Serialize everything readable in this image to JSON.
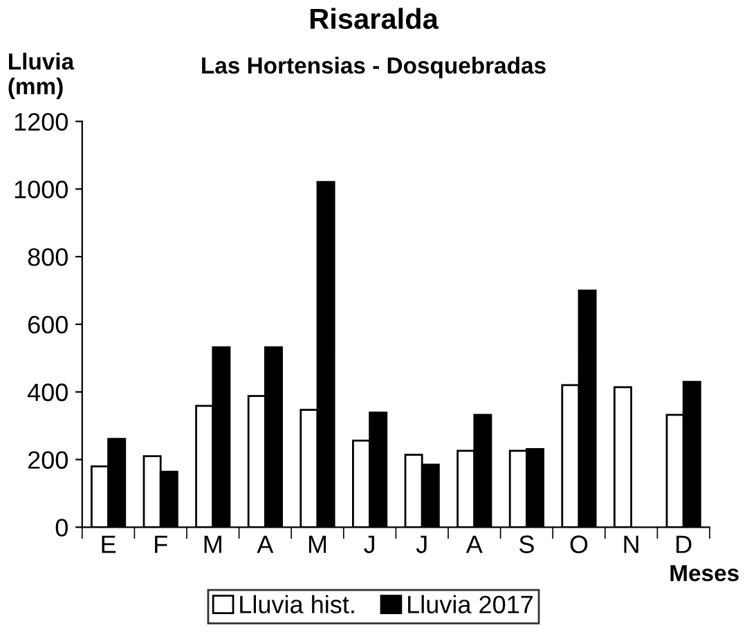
{
  "chart_data": {
    "type": "bar",
    "title": "Risaralda",
    "subtitle": "Las Hortensias - Dosquebradas",
    "xlabel": "Meses",
    "ylabel": "Lluvia\n(mm)",
    "categories": [
      "E",
      "F",
      "M",
      "A",
      "M",
      "J",
      "J",
      "A",
      "S",
      "O",
      "N",
      "D"
    ],
    "series": [
      {
        "name": "Lluvia hist.",
        "color": "#ffffff",
        "values": [
          180,
          210,
          359,
          388,
          347,
          256,
          214,
          226,
          226,
          420,
          414,
          332
        ]
      },
      {
        "name": "Lluvia 2017",
        "color": "#000000",
        "values": [
          261,
          164,
          532,
          532,
          1021,
          339,
          185,
          332,
          231,
          700,
          null,
          430
        ]
      }
    ],
    "ylim": [
      0,
      1200
    ],
    "yticks": [
      0,
      200,
      400,
      600,
      800,
      1000,
      1200
    ],
    "grid": false,
    "legend": "bottom"
  }
}
